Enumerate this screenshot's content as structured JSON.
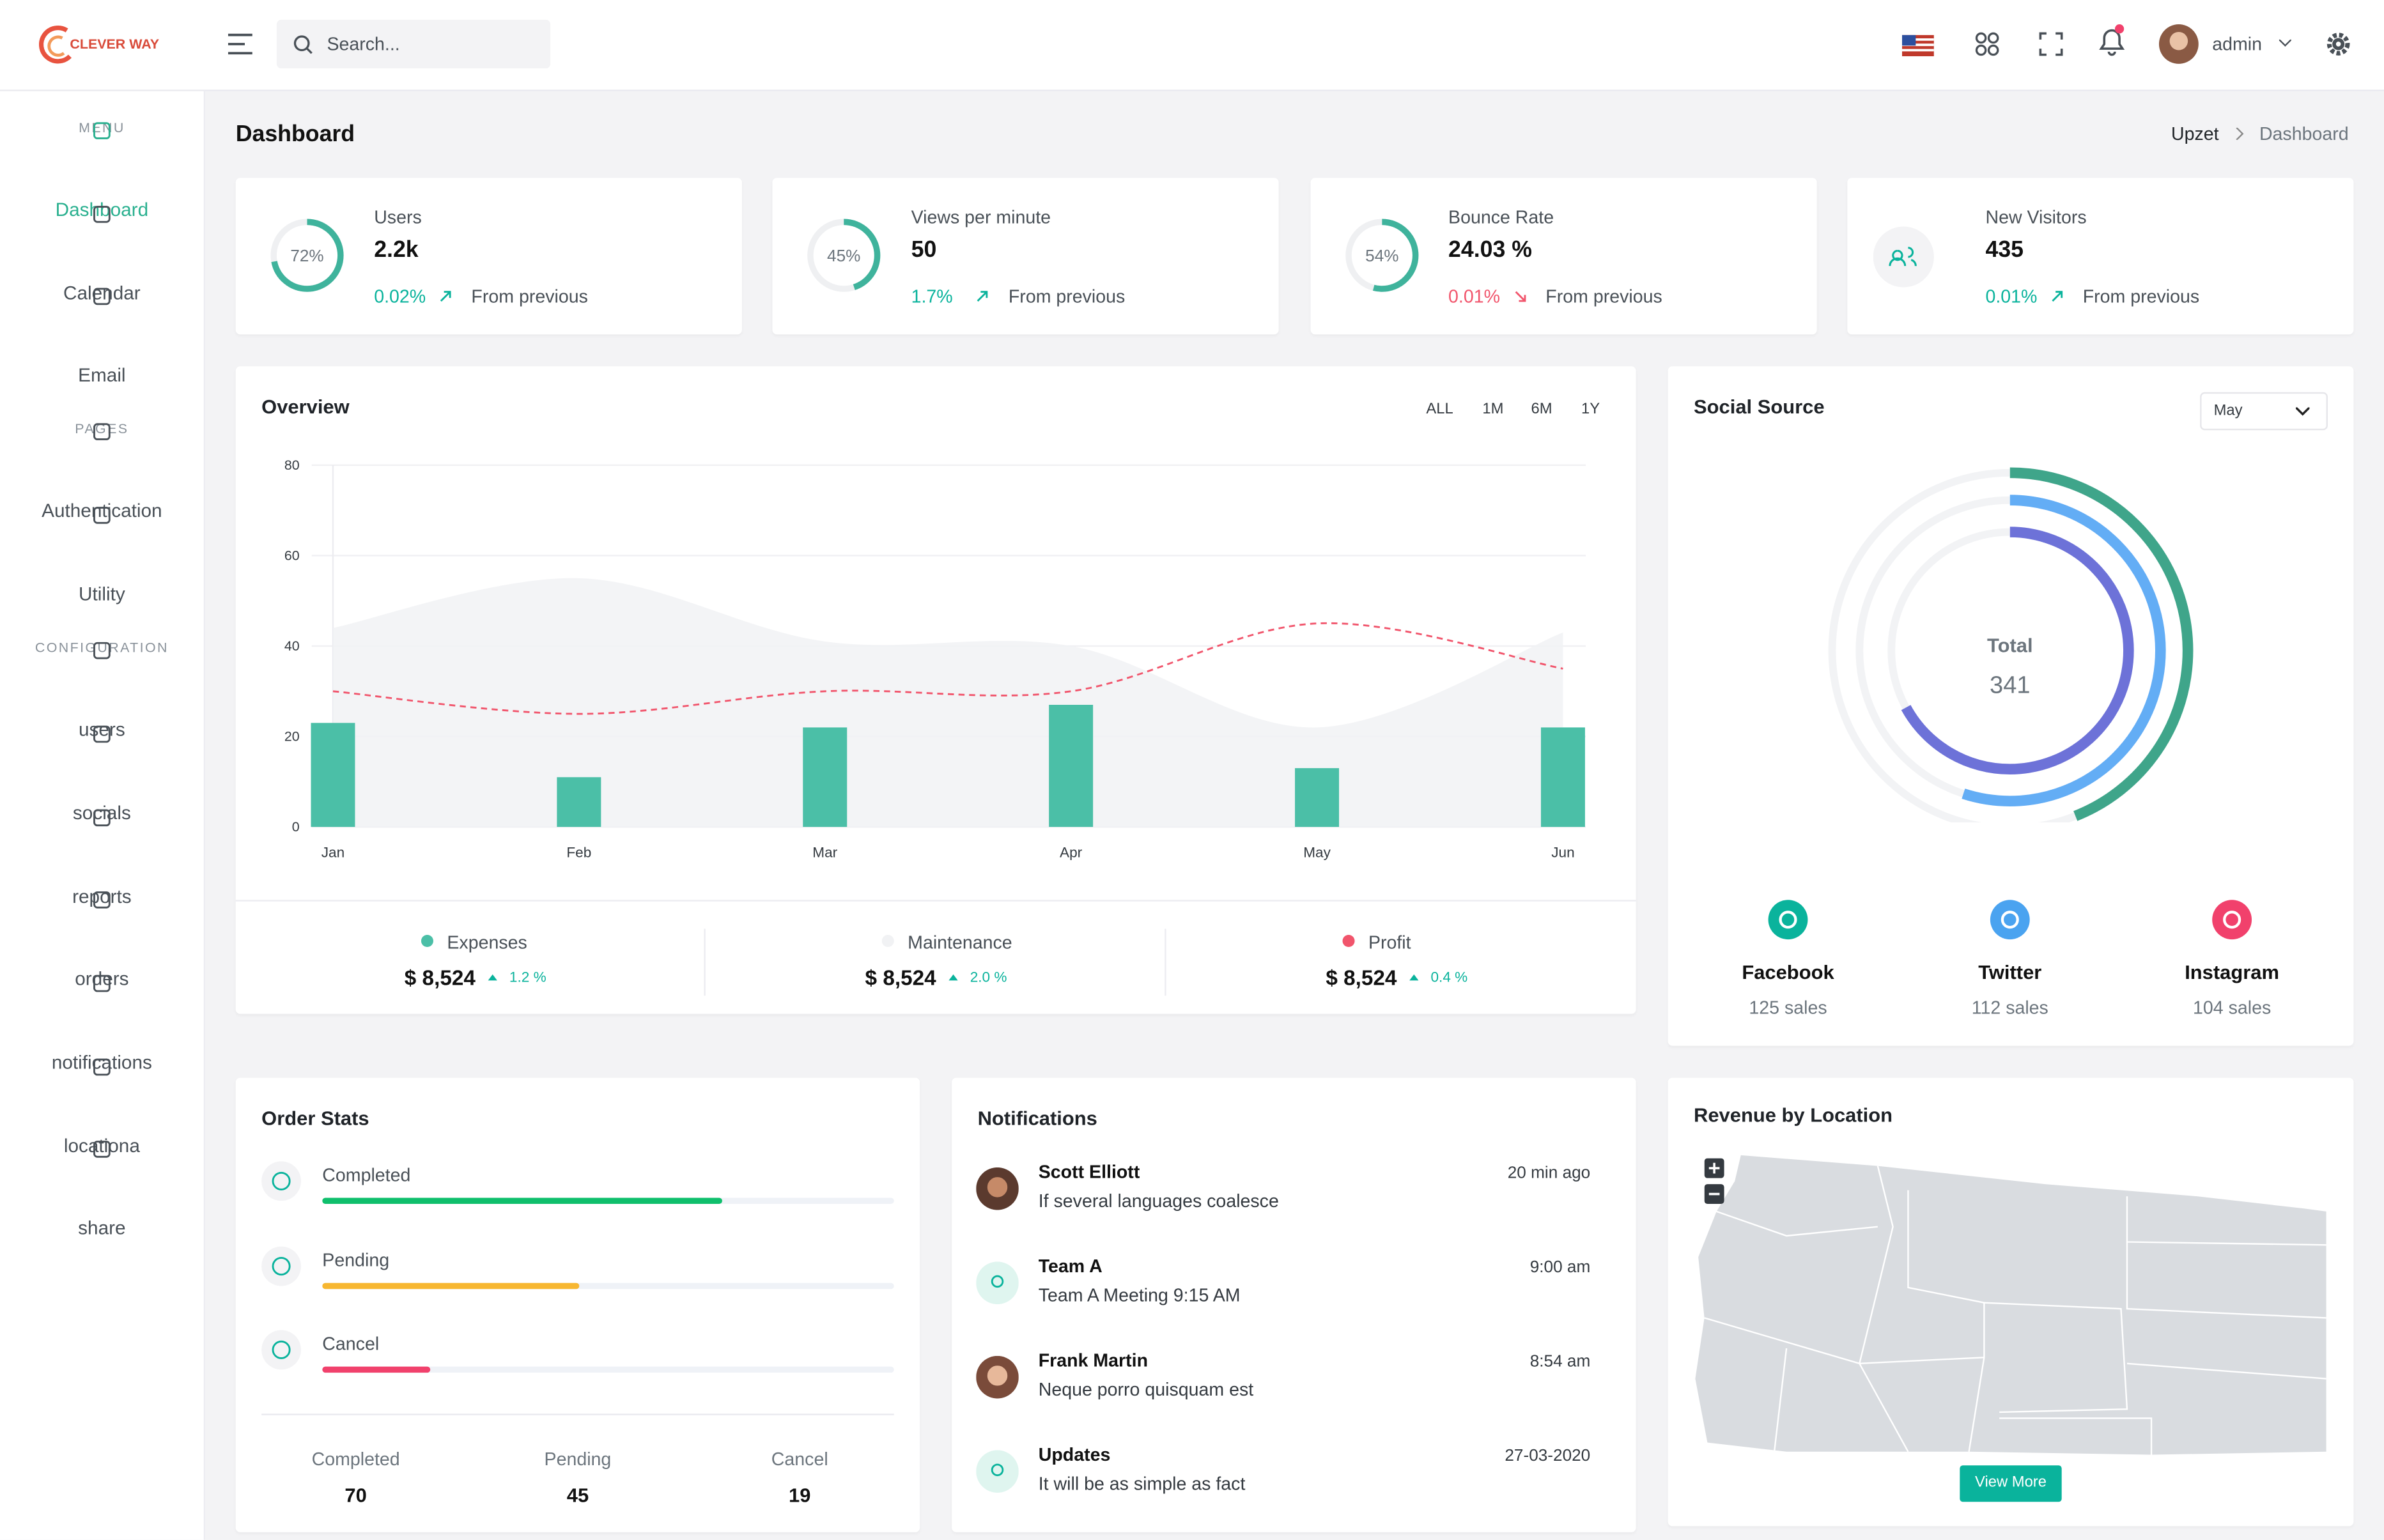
{
  "header": {
    "logo": "CLEVER WAY",
    "search": "Search...",
    "user": "admin"
  },
  "sidebar": {
    "sections": [
      {
        "title": "MENU",
        "items": [
          "Dashboard",
          "Calendar",
          "Email"
        ]
      },
      {
        "title": "PAGES",
        "items": [
          "Authentication",
          "Utility"
        ]
      },
      {
        "title": "CONFIGURATION",
        "items": [
          "users",
          "socials",
          "reports",
          "orders",
          "notifications",
          "locationa",
          "share"
        ]
      }
    ]
  },
  "page": {
    "title": "Dashboard",
    "breadcrumb": [
      "Upzet",
      "Dashboard"
    ]
  },
  "stats": [
    {
      "label": "Users",
      "value": "2.2k",
      "progress": 72,
      "progress_label": "72%",
      "change": "0.02%",
      "trend": "up",
      "note": "From previous"
    },
    {
      "label": "Views per minute",
      "value": "50",
      "progress": 45,
      "progress_label": "45%",
      "change": "1.7%",
      "trend": "up",
      "note": "From previous"
    },
    {
      "label": "Bounce Rate",
      "value": "24.03 %",
      "progress": 54,
      "progress_label": "54%",
      "change": "0.01%",
      "trend": "down",
      "note": "From previous"
    },
    {
      "label": "New Visitors",
      "value": "435",
      "change": "0.01%",
      "trend": "up",
      "note": "From previous"
    }
  ],
  "overview": {
    "title": "Overview",
    "ranges": [
      "ALL",
      "1M",
      "6M",
      "1Y"
    ],
    "chart_data": {
      "type": "combo",
      "categories": [
        "Jan",
        "Feb",
        "Mar",
        "Apr",
        "May",
        "Jun"
      ],
      "ylim": [
        0,
        80
      ],
      "yticks": [
        0,
        20,
        40,
        60,
        80
      ],
      "grid": true,
      "series": [
        {
          "name": "Expenses",
          "type": "bar",
          "color": "#4bbfa7",
          "values": [
            23,
            11,
            22,
            27,
            13,
            22
          ]
        },
        {
          "name": "Maintenance",
          "type": "area",
          "color": "#f1f2f4",
          "values": [
            44,
            55,
            41,
            40,
            22,
            43
          ]
        },
        {
          "name": "Profit",
          "type": "line",
          "color": "#f1556c",
          "values": [
            30,
            25,
            30,
            30,
            45,
            35
          ]
        }
      ]
    },
    "summary": [
      {
        "total": "$ 8,524",
        "change": "1.2 %"
      },
      {
        "total": "$ 8,524",
        "change": "2.0 %"
      },
      {
        "total": "$ 8,524",
        "change": "0.4 %"
      }
    ]
  },
  "social_source": {
    "title": "Social Source",
    "period": "May",
    "total_label": "Total",
    "total": 341,
    "sources": [
      {
        "name": "Facebook",
        "color": "#0ab39c",
        "ring_color": "#3fa58a",
        "ring": 44,
        "sales_label": "125 sales"
      },
      {
        "name": "Twitter",
        "color": "#4aa3f0",
        "ring_color": "#63adf5",
        "ring": 55,
        "sales_label": "112 sales"
      },
      {
        "name": "Instagram",
        "color": "#f1416c",
        "ring_color": "#6d72d8",
        "ring": 67,
        "sales_label": "104 sales"
      }
    ]
  },
  "order_stats": {
    "title": "Order Stats",
    "items": [
      {
        "name": "Completed",
        "value": 70,
        "color": "#0fbf6c"
      },
      {
        "name": "Pending",
        "value": 45,
        "color": "#f7b731"
      },
      {
        "name": "Cancel",
        "value": 19,
        "color": "#f1416c"
      }
    ]
  },
  "notifications": {
    "title": "Notifications",
    "items": [
      {
        "name": "Scott Elliott",
        "text": "If several languages coalesce",
        "time": "20 min ago"
      },
      {
        "name": "Team A",
        "text": "Team A Meeting 9:15 AM",
        "time": "9:00 am"
      },
      {
        "name": "Frank Martin",
        "text": "Neque porro quisquam est",
        "time": "8:54 am"
      },
      {
        "name": "Updates",
        "text": "It will be as simple as fact",
        "time": "27-03-2020"
      }
    ]
  },
  "revenue": {
    "title": "Revenue by Location",
    "button": "View More"
  }
}
